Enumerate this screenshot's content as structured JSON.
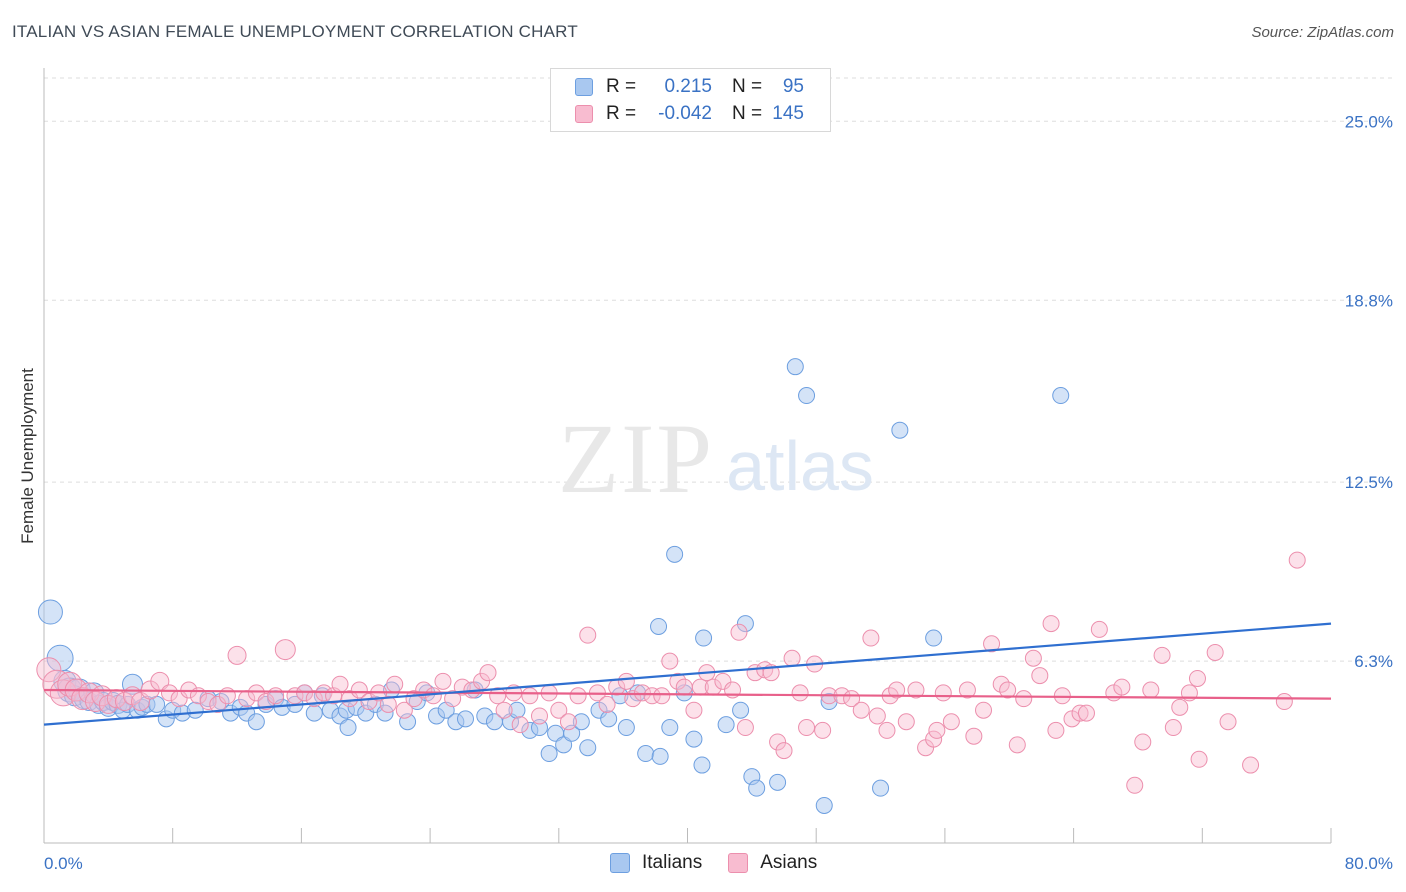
{
  "title": "ITALIAN VS ASIAN FEMALE UNEMPLOYMENT CORRELATION CHART",
  "source": "Source: ZipAtlas.com",
  "watermark": {
    "part1": "ZIP",
    "part2": "atlas"
  },
  "legend": {
    "rows": [
      {
        "r_label": "R =",
        "r_value": "0.215",
        "n_label": "N =",
        "n_value": "95"
      },
      {
        "r_label": "R =",
        "r_value": "-0.042",
        "n_label": "N =",
        "n_value": "145"
      }
    ]
  },
  "bottom_legend": {
    "items": [
      "Italians",
      "Asians"
    ]
  },
  "colors": {
    "italians_fill": "#a9c8f0",
    "italians_stroke": "#6d9fe0",
    "italians_line": "#2f6fd0",
    "asians_fill": "#f8bcd0",
    "asians_stroke": "#ec8fad",
    "asians_line": "#e8608a",
    "tick_label": "#3a72c4",
    "grid": "#dddddd"
  },
  "chart_data": {
    "type": "scatter",
    "title": "ITALIAN VS ASIAN FEMALE UNEMPLOYMENT CORRELATION CHART",
    "xlabel": "",
    "ylabel": "Female Unemployment",
    "xlim": [
      0,
      80
    ],
    "ylim": [
      0,
      26.5
    ],
    "x_tick_labels": [
      "0.0%",
      "80.0%"
    ],
    "y_ticks": [
      6.3,
      12.5,
      18.8,
      25.0
    ],
    "y_tick_labels": [
      "6.3%",
      "12.5%",
      "18.8%",
      "25.0%"
    ],
    "grid": true,
    "legend_position": "top-center",
    "series": [
      {
        "name": "Italians",
        "r": 0.215,
        "n": 95,
        "trend": {
          "x": [
            0,
            80
          ],
          "y": [
            4.1,
            7.6
          ]
        },
        "points": [
          [
            0.4,
            8.0,
            12
          ],
          [
            1.0,
            6.4,
            13
          ],
          [
            1.3,
            5.6,
            11
          ],
          [
            1.6,
            5.3,
            12
          ],
          [
            1.9,
            5.1,
            10
          ],
          [
            2.2,
            5.3,
            11
          ],
          [
            2.5,
            5.0,
            10
          ],
          [
            2.8,
            4.9,
            9
          ],
          [
            3.1,
            5.2,
            10
          ],
          [
            3.4,
            4.8,
            9
          ],
          [
            3.7,
            4.9,
            9
          ],
          [
            4.0,
            4.7,
            9
          ],
          [
            4.3,
            4.9,
            9
          ],
          [
            4.6,
            4.8,
            9
          ],
          [
            4.9,
            4.6,
            8
          ],
          [
            5.2,
            4.8,
            8
          ],
          [
            5.5,
            5.5,
            10
          ],
          [
            5.8,
            4.6,
            8
          ],
          [
            6.1,
            4.7,
            8
          ],
          [
            6.4,
            4.8,
            8
          ],
          [
            7.0,
            4.8,
            8
          ],
          [
            7.6,
            4.3,
            8
          ],
          [
            8.0,
            4.6,
            8
          ],
          [
            8.6,
            4.5,
            8
          ],
          [
            9.4,
            4.6,
            8
          ],
          [
            10.2,
            5.0,
            8
          ],
          [
            11.0,
            4.9,
            8
          ],
          [
            11.6,
            4.5,
            8
          ],
          [
            12.2,
            4.7,
            8
          ],
          [
            12.6,
            4.5,
            8
          ],
          [
            13.2,
            4.2,
            8
          ],
          [
            13.8,
            4.8,
            8
          ],
          [
            14.4,
            5.0,
            8
          ],
          [
            14.8,
            4.7,
            8
          ],
          [
            15.6,
            4.8,
            8
          ],
          [
            16.2,
            5.2,
            8
          ],
          [
            16.8,
            4.5,
            8
          ],
          [
            17.3,
            5.1,
            8
          ],
          [
            17.8,
            4.6,
            8
          ],
          [
            18.4,
            4.4,
            8
          ],
          [
            18.8,
            4.6,
            8
          ],
          [
            18.9,
            4.0,
            8
          ],
          [
            19.4,
            4.7,
            8
          ],
          [
            20.0,
            4.5,
            8
          ],
          [
            20.6,
            4.8,
            8
          ],
          [
            21.2,
            4.5,
            8
          ],
          [
            21.6,
            5.3,
            8
          ],
          [
            22.6,
            4.2,
            8
          ],
          [
            23.2,
            4.9,
            8
          ],
          [
            23.8,
            5.2,
            8
          ],
          [
            24.4,
            4.4,
            8
          ],
          [
            25.0,
            4.6,
            8
          ],
          [
            25.6,
            4.2,
            8
          ],
          [
            26.2,
            4.3,
            8
          ],
          [
            26.8,
            5.3,
            8
          ],
          [
            27.4,
            4.4,
            8
          ],
          [
            28.0,
            4.2,
            8
          ],
          [
            29.0,
            4.2,
            8
          ],
          [
            29.4,
            4.6,
            8
          ],
          [
            30.2,
            3.9,
            8
          ],
          [
            30.8,
            4.0,
            8
          ],
          [
            31.4,
            3.1,
            8
          ],
          [
            31.8,
            3.8,
            8
          ],
          [
            32.3,
            3.4,
            8
          ],
          [
            32.8,
            3.8,
            8
          ],
          [
            33.4,
            4.2,
            8
          ],
          [
            33.8,
            3.3,
            8
          ],
          [
            34.5,
            4.6,
            8
          ],
          [
            35.1,
            4.3,
            8
          ],
          [
            35.8,
            5.1,
            8
          ],
          [
            36.2,
            4.0,
            8
          ],
          [
            36.9,
            5.2,
            8
          ],
          [
            37.4,
            3.1,
            8
          ],
          [
            38.3,
            3.0,
            8
          ],
          [
            38.2,
            7.5,
            8
          ],
          [
            38.9,
            4.0,
            8
          ],
          [
            39.2,
            10.0,
            8
          ],
          [
            39.8,
            5.2,
            8
          ],
          [
            40.4,
            3.6,
            8
          ],
          [
            40.9,
            2.7,
            8
          ],
          [
            41.0,
            7.1,
            8
          ],
          [
            42.4,
            4.1,
            8
          ],
          [
            43.3,
            4.6,
            8
          ],
          [
            43.6,
            7.6,
            8
          ],
          [
            44.0,
            2.3,
            8
          ],
          [
            44.3,
            1.9,
            8
          ],
          [
            45.6,
            2.1,
            8
          ],
          [
            46.7,
            16.5,
            8
          ],
          [
            47.4,
            15.5,
            8
          ],
          [
            48.5,
            1.3,
            8
          ],
          [
            48.8,
            4.9,
            8
          ],
          [
            52.0,
            1.9,
            8
          ],
          [
            53.2,
            14.3,
            8
          ],
          [
            55.3,
            7.1,
            8
          ],
          [
            63.2,
            15.5,
            8
          ]
        ]
      },
      {
        "name": "Asians",
        "r": -0.042,
        "n": 145,
        "trend": {
          "x": [
            0,
            80
          ],
          "y": [
            5.3,
            5.0
          ]
        },
        "points": [
          [
            0.3,
            6.0,
            12
          ],
          [
            0.8,
            5.5,
            14
          ],
          [
            1.2,
            5.2,
            13
          ],
          [
            1.6,
            5.5,
            12
          ],
          [
            2.0,
            5.3,
            11
          ],
          [
            2.4,
            5.0,
            11
          ],
          [
            2.8,
            5.2,
            10
          ],
          [
            3.2,
            4.9,
            10
          ],
          [
            3.6,
            5.1,
            10
          ],
          [
            4.0,
            4.8,
            9
          ],
          [
            4.5,
            5.0,
            9
          ],
          [
            5.0,
            4.9,
            9
          ],
          [
            5.5,
            5.1,
            9
          ],
          [
            6.0,
            4.9,
            9
          ],
          [
            6.6,
            5.3,
            9
          ],
          [
            7.2,
            5.6,
            9
          ],
          [
            7.8,
            5.2,
            8
          ],
          [
            8.4,
            5.0,
            8
          ],
          [
            9.0,
            5.3,
            8
          ],
          [
            9.6,
            5.1,
            8
          ],
          [
            10.2,
            4.9,
            8
          ],
          [
            10.8,
            4.8,
            8
          ],
          [
            11.4,
            5.1,
            8
          ],
          [
            12.0,
            6.5,
            9
          ],
          [
            12.6,
            5.0,
            8
          ],
          [
            13.2,
            5.2,
            8
          ],
          [
            13.8,
            4.9,
            8
          ],
          [
            14.4,
            5.1,
            8
          ],
          [
            15.0,
            6.7,
            10
          ],
          [
            15.6,
            5.1,
            8
          ],
          [
            16.2,
            5.2,
            8
          ],
          [
            16.8,
            5.0,
            8
          ],
          [
            17.4,
            5.2,
            8
          ],
          [
            18.0,
            5.1,
            8
          ],
          [
            18.4,
            5.5,
            8
          ],
          [
            19.0,
            5.0,
            8
          ],
          [
            19.6,
            5.3,
            8
          ],
          [
            20.2,
            4.9,
            8
          ],
          [
            20.8,
            5.2,
            8
          ],
          [
            21.4,
            4.8,
            8
          ],
          [
            21.8,
            5.5,
            8
          ],
          [
            22.4,
            4.6,
            8
          ],
          [
            23.0,
            5.0,
            8
          ],
          [
            23.6,
            5.3,
            8
          ],
          [
            24.2,
            5.1,
            8
          ],
          [
            24.8,
            5.6,
            8
          ],
          [
            25.4,
            5.0,
            8
          ],
          [
            26.0,
            5.4,
            8
          ],
          [
            26.6,
            5.3,
            8
          ],
          [
            27.2,
            5.6,
            8
          ],
          [
            27.6,
            5.9,
            8
          ],
          [
            28.2,
            5.1,
            8
          ],
          [
            28.6,
            4.6,
            8
          ],
          [
            29.2,
            5.2,
            8
          ],
          [
            29.6,
            4.1,
            8
          ],
          [
            30.2,
            5.1,
            8
          ],
          [
            30.8,
            4.4,
            8
          ],
          [
            31.4,
            5.2,
            8
          ],
          [
            32.0,
            4.6,
            8
          ],
          [
            32.6,
            4.2,
            8
          ],
          [
            33.2,
            5.1,
            8
          ],
          [
            33.8,
            7.2,
            8
          ],
          [
            34.4,
            5.2,
            8
          ],
          [
            35.0,
            4.8,
            8
          ],
          [
            35.6,
            5.4,
            8
          ],
          [
            36.2,
            5.6,
            8
          ],
          [
            36.6,
            5.0,
            8
          ],
          [
            37.2,
            5.2,
            8
          ],
          [
            37.8,
            5.1,
            8
          ],
          [
            38.4,
            5.1,
            8
          ],
          [
            38.9,
            6.3,
            8
          ],
          [
            39.4,
            5.6,
            8
          ],
          [
            39.8,
            5.4,
            8
          ],
          [
            40.4,
            4.6,
            8
          ],
          [
            40.8,
            5.4,
            8
          ],
          [
            41.2,
            5.9,
            8
          ],
          [
            41.6,
            5.4,
            8
          ],
          [
            42.2,
            5.6,
            8
          ],
          [
            42.8,
            5.3,
            8
          ],
          [
            43.2,
            7.3,
            8
          ],
          [
            43.6,
            4.0,
            8
          ],
          [
            44.2,
            5.9,
            8
          ],
          [
            44.8,
            6.0,
            8
          ],
          [
            45.2,
            5.9,
            8
          ],
          [
            45.6,
            3.5,
            8
          ],
          [
            46.0,
            3.2,
            8
          ],
          [
            46.5,
            6.4,
            8
          ],
          [
            47.0,
            5.2,
            8
          ],
          [
            47.4,
            4.0,
            8
          ],
          [
            47.9,
            6.2,
            8
          ],
          [
            48.4,
            3.9,
            8
          ],
          [
            48.8,
            5.1,
            8
          ],
          [
            49.6,
            5.1,
            8
          ],
          [
            50.2,
            5.0,
            8
          ],
          [
            50.8,
            4.6,
            8
          ],
          [
            51.4,
            7.1,
            8
          ],
          [
            51.8,
            4.4,
            8
          ],
          [
            52.4,
            3.9,
            8
          ],
          [
            52.6,
            5.1,
            8
          ],
          [
            53.0,
            5.3,
            8
          ],
          [
            53.6,
            4.2,
            8
          ],
          [
            54.2,
            5.3,
            8
          ],
          [
            54.8,
            3.3,
            8
          ],
          [
            55.3,
            3.6,
            8
          ],
          [
            55.5,
            3.9,
            8
          ],
          [
            55.9,
            5.2,
            8
          ],
          [
            56.4,
            4.2,
            8
          ],
          [
            57.4,
            5.3,
            8
          ],
          [
            57.8,
            3.7,
            8
          ],
          [
            58.4,
            4.6,
            8
          ],
          [
            58.9,
            6.9,
            8
          ],
          [
            59.5,
            5.5,
            8
          ],
          [
            59.9,
            5.3,
            8
          ],
          [
            60.5,
            3.4,
            8
          ],
          [
            60.9,
            5.0,
            8
          ],
          [
            61.5,
            6.4,
            8
          ],
          [
            61.9,
            5.8,
            8
          ],
          [
            62.6,
            7.6,
            8
          ],
          [
            62.9,
            3.9,
            8
          ],
          [
            63.3,
            5.1,
            8
          ],
          [
            63.9,
            4.3,
            8
          ],
          [
            64.4,
            4.5,
            8
          ],
          [
            64.8,
            4.5,
            8
          ],
          [
            65.6,
            7.4,
            8
          ],
          [
            66.5,
            5.2,
            8
          ],
          [
            67.0,
            5.4,
            8
          ],
          [
            67.8,
            2.0,
            8
          ],
          [
            68.3,
            3.5,
            8
          ],
          [
            68.8,
            5.3,
            8
          ],
          [
            69.5,
            6.5,
            8
          ],
          [
            70.2,
            4.0,
            8
          ],
          [
            70.6,
            4.7,
            8
          ],
          [
            71.2,
            5.2,
            8
          ],
          [
            71.7,
            5.7,
            8
          ],
          [
            71.8,
            2.9,
            8
          ],
          [
            72.8,
            6.6,
            8
          ],
          [
            73.6,
            4.2,
            8
          ],
          [
            75.0,
            2.7,
            8
          ],
          [
            77.1,
            4.9,
            8
          ],
          [
            77.9,
            9.8,
            8
          ]
        ]
      }
    ]
  }
}
